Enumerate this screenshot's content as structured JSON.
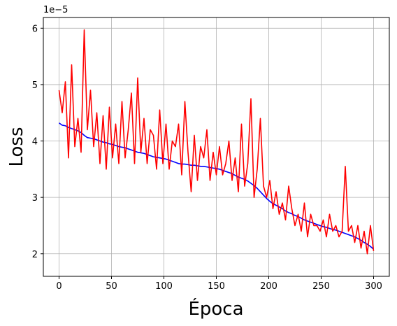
{
  "chart_data": {
    "type": "line",
    "x_label": "Época",
    "y_label": "Loss",
    "y_offset_label": "1e−5",
    "x": [
      0,
      3,
      6,
      9,
      12,
      15,
      18,
      21,
      24,
      27,
      30,
      33,
      36,
      39,
      42,
      45,
      48,
      51,
      54,
      57,
      60,
      63,
      66,
      69,
      72,
      75,
      78,
      81,
      84,
      87,
      90,
      93,
      96,
      99,
      102,
      105,
      108,
      111,
      114,
      117,
      120,
      123,
      126,
      129,
      132,
      135,
      138,
      141,
      144,
      147,
      150,
      153,
      156,
      159,
      162,
      165,
      168,
      171,
      174,
      177,
      180,
      183,
      186,
      189,
      192,
      195,
      198,
      201,
      204,
      207,
      210,
      213,
      216,
      219,
      222,
      225,
      228,
      231,
      234,
      237,
      240,
      243,
      246,
      249,
      252,
      255,
      258,
      261,
      264,
      267,
      270,
      273,
      276,
      279,
      282,
      285,
      288,
      291,
      294,
      297,
      300
    ],
    "series": [
      {
        "color": "#0000ff",
        "values": [
          4.32,
          4.28,
          4.27,
          4.24,
          4.22,
          4.2,
          4.18,
          4.15,
          4.1,
          4.06,
          4.05,
          4.04,
          4.02,
          4.0,
          3.98,
          3.97,
          3.95,
          3.94,
          3.92,
          3.9,
          3.89,
          3.88,
          3.86,
          3.84,
          3.82,
          3.8,
          3.79,
          3.78,
          3.76,
          3.74,
          3.72,
          3.71,
          3.7,
          3.69,
          3.68,
          3.66,
          3.64,
          3.62,
          3.6,
          3.59,
          3.59,
          3.58,
          3.57,
          3.57,
          3.56,
          3.55,
          3.55,
          3.54,
          3.53,
          3.52,
          3.51,
          3.5,
          3.48,
          3.46,
          3.44,
          3.42,
          3.39,
          3.36,
          3.34,
          3.32,
          3.29,
          3.25,
          3.21,
          3.16,
          3.1,
          3.04,
          2.98,
          2.93,
          2.89,
          2.86,
          2.83,
          2.8,
          2.76,
          2.73,
          2.71,
          2.68,
          2.66,
          2.63,
          2.6,
          2.58,
          2.56,
          2.54,
          2.52,
          2.5,
          2.48,
          2.47,
          2.45,
          2.43,
          2.42,
          2.4,
          2.38,
          2.36,
          2.34,
          2.32,
          2.3,
          2.27,
          2.24,
          2.2,
          2.17,
          2.13,
          2.08
        ]
      },
      {
        "color": "#ff0000",
        "values": [
          4.9,
          4.5,
          5.05,
          3.7,
          5.35,
          3.9,
          4.4,
          3.8,
          5.97,
          4.2,
          4.9,
          3.9,
          4.5,
          3.6,
          4.45,
          3.5,
          4.6,
          3.7,
          4.3,
          3.6,
          4.7,
          3.7,
          4.2,
          4.85,
          3.6,
          5.12,
          3.8,
          4.4,
          3.6,
          4.2,
          4.1,
          3.5,
          4.55,
          3.6,
          4.3,
          3.5,
          4.0,
          3.9,
          4.3,
          3.4,
          4.7,
          3.8,
          3.1,
          4.1,
          3.3,
          3.9,
          3.7,
          4.2,
          3.3,
          3.8,
          3.4,
          3.9,
          3.4,
          3.6,
          4.0,
          3.3,
          3.7,
          3.1,
          4.3,
          3.2,
          3.6,
          4.75,
          3.0,
          3.5,
          4.4,
          3.2,
          3.0,
          3.3,
          2.8,
          3.1,
          2.7,
          2.9,
          2.6,
          3.2,
          2.8,
          2.5,
          2.7,
          2.4,
          2.9,
          2.3,
          2.7,
          2.5,
          2.5,
          2.4,
          2.6,
          2.3,
          2.7,
          2.4,
          2.5,
          2.3,
          2.4,
          3.55,
          2.4,
          2.5,
          2.2,
          2.5,
          2.1,
          2.4,
          2.0,
          2.5,
          2.05
        ]
      }
    ],
    "xlim": [
      -15,
      315
    ],
    "xticks": [
      0,
      50,
      100,
      150,
      200,
      250,
      300
    ],
    "ylim": [
      1.6,
      6.19
    ],
    "yticks": [
      2,
      3,
      4,
      5,
      6
    ],
    "grid": true
  }
}
